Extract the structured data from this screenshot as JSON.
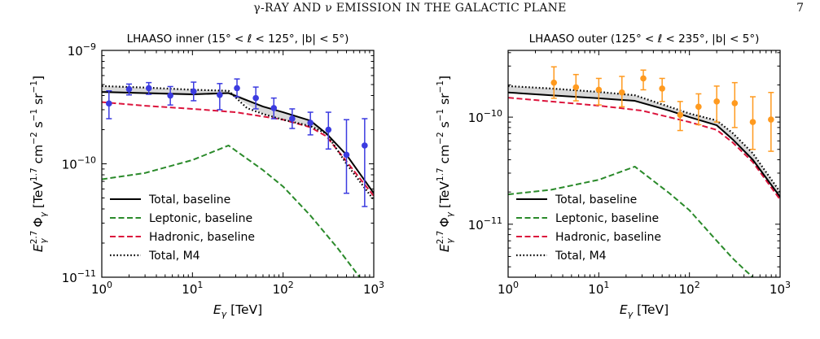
{
  "header": {
    "running_head": "γ-RAY AND ν EMISSION IN THE GALACTIC PLANE",
    "page_number": "7"
  },
  "chart_data": [
    {
      "type": "line",
      "title": "LHAASO inner (15° < ℓ < 125°, |b| < 5°)",
      "xlabel": "E_γ [TeV]",
      "ylabel": "E_γ^2.7 Φ_γ [TeV^1.7 cm^-2 s^-1 sr^-1]",
      "xscale": "log",
      "yscale": "log",
      "xlim": [
        1,
        1000
      ],
      "ylim": [
        1e-11,
        1e-09
      ],
      "x_ticks": [
        {
          "value": 1,
          "base": "10",
          "exp": "0"
        },
        {
          "value": 10,
          "base": "10",
          "exp": "1"
        },
        {
          "value": 100,
          "base": "10",
          "exp": "2"
        },
        {
          "value": 1000,
          "base": "10",
          "exp": "3"
        }
      ],
      "y_ticks": [
        {
          "value": 1e-11,
          "base": "10",
          "exp": "−11"
        },
        {
          "value": 1e-10,
          "base": "10",
          "exp": "−10"
        },
        {
          "value": 1e-09,
          "base": "10",
          "exp": "−9"
        }
      ],
      "legend_position": "lower-left",
      "band": {
        "color": "#d9d9d9",
        "x": [
          1,
          10,
          25,
          60,
          100,
          200,
          300,
          1000
        ],
        "lower": [
          4.2e-10,
          4e-10,
          4.2e-10,
          2.75e-10,
          2.45e-10,
          2.15e-10,
          1.85e-10,
          5.5e-11
        ],
        "upper": [
          4.85e-10,
          4.5e-10,
          4.4e-10,
          3.2e-10,
          2.85e-10,
          2.4e-10,
          1.85e-10,
          5.5e-11
        ]
      },
      "series": [
        {
          "name": "Total, baseline",
          "style": "solid",
          "color": "#000000",
          "x": [
            1,
            3,
            10,
            25,
            60,
            100,
            200,
            300,
            500,
            1000
          ],
          "y": [
            4.3e-10,
            4.2e-10,
            4.1e-10,
            4.2e-10,
            3.2e-10,
            2.85e-10,
            2.4e-10,
            1.85e-10,
            1.2e-10,
            5.5e-11
          ]
        },
        {
          "name": "Leptonic, baseline",
          "style": "dashed",
          "color": "#2a8a2a",
          "x": [
            1,
            3,
            10,
            25,
            60,
            100,
            200,
            400,
            700
          ],
          "y": [
            7.3e-11,
            8.3e-11,
            1.08e-10,
            1.45e-10,
            8.8e-11,
            6.3e-11,
            3.5e-11,
            1.8e-11,
            1e-11
          ]
        },
        {
          "name": "Hadronic, baseline",
          "style": "dashed",
          "color": "#dc143c",
          "x": [
            1,
            3,
            10,
            30,
            100,
            200,
            300,
            500,
            1000
          ],
          "y": [
            3.5e-10,
            3.25e-10,
            3.05e-10,
            2.85e-10,
            2.45e-10,
            2.1e-10,
            1.75e-10,
            1.05e-10,
            5.2e-11
          ]
        },
        {
          "name": "Total, M4",
          "style": "dotted",
          "color": "#000000",
          "x": [
            1,
            3,
            10,
            25,
            40,
            60,
            100,
            200,
            300,
            500,
            1000
          ],
          "y": [
            4.85e-10,
            4.7e-10,
            4.5e-10,
            4.4e-10,
            3.1e-10,
            2.75e-10,
            2.45e-10,
            2.15e-10,
            1.85e-10,
            1e-10,
            4.8e-11
          ]
        }
      ],
      "data_points": {
        "color": "#3b3be0",
        "points": [
          {
            "x": 1.2,
            "y": 3.4e-10,
            "ylo": 2.5e-10,
            "yhi": 4.4e-10
          },
          {
            "x": 2.0,
            "y": 4.55e-10,
            "ylo": 4.05e-10,
            "yhi": 5.05e-10
          },
          {
            "x": 3.3,
            "y": 4.65e-10,
            "ylo": 4.1e-10,
            "yhi": 5.2e-10
          },
          {
            "x": 5.7,
            "y": 4e-10,
            "ylo": 3.3e-10,
            "yhi": 4.8e-10
          },
          {
            "x": 10.3,
            "y": 4.35e-10,
            "ylo": 3.6e-10,
            "yhi": 5.25e-10
          },
          {
            "x": 20,
            "y": 4.05e-10,
            "ylo": 3e-10,
            "yhi": 5.1e-10
          },
          {
            "x": 31,
            "y": 4.65e-10,
            "ylo": 3.9e-10,
            "yhi": 5.6e-10
          },
          {
            "x": 50,
            "y": 3.8e-10,
            "ylo": 3.05e-10,
            "yhi": 4.75e-10
          },
          {
            "x": 79,
            "y": 3.1e-10,
            "ylo": 2.5e-10,
            "yhi": 3.8e-10
          },
          {
            "x": 126,
            "y": 2.5e-10,
            "ylo": 2.05e-10,
            "yhi": 3.05e-10
          },
          {
            "x": 200,
            "y": 2.3e-10,
            "ylo": 1.8e-10,
            "yhi": 2.85e-10
          },
          {
            "x": 316,
            "y": 2e-10,
            "ylo": 1.35e-10,
            "yhi": 2.85e-10
          },
          {
            "x": 500,
            "y": 1.2e-10,
            "ylo": 5.5e-11,
            "yhi": 2.45e-10
          },
          {
            "x": 794,
            "y": 1.45e-10,
            "ylo": 4.2e-11,
            "yhi": 2.5e-10
          }
        ]
      }
    },
    {
      "type": "line",
      "title": "LHAASO outer (125° < ℓ < 235°, |b| < 5°)",
      "xlabel": "E_γ [TeV]",
      "ylabel": "E_γ^2.7 Φ_γ [TeV^1.7 cm^-2 s^-1 sr^-1]",
      "xscale": "log",
      "yscale": "log",
      "xlim": [
        1,
        1000
      ],
      "ylim": [
        3.2e-12,
        4.2e-10
      ],
      "x_ticks": [
        {
          "value": 1,
          "base": "10",
          "exp": "0"
        },
        {
          "value": 10,
          "base": "10",
          "exp": "1"
        },
        {
          "value": 100,
          "base": "10",
          "exp": "2"
        },
        {
          "value": 1000,
          "base": "10",
          "exp": "3"
        }
      ],
      "y_ticks": [
        {
          "value": 1e-11,
          "base": "10",
          "exp": "−11"
        },
        {
          "value": 1e-10,
          "base": "10",
          "exp": "−10"
        }
      ],
      "legend_position": "lower-left",
      "band": {
        "color": "#d9d9d9",
        "x": [
          1,
          3,
          10,
          25,
          60,
          100,
          200,
          300,
          500,
          1000
        ],
        "lower": [
          1.7e-10,
          1.6e-10,
          1.5e-10,
          1.42e-10,
          1.15e-10,
          1e-10,
          8.4e-11,
          6.2e-11,
          4e-11,
          1.8e-11
        ],
        "upper": [
          1.95e-10,
          1.85e-10,
          1.72e-10,
          1.6e-10,
          1.25e-10,
          1.08e-10,
          9.3e-11,
          7.1e-11,
          4.6e-11,
          2e-11
        ]
      },
      "series": [
        {
          "name": "Total, baseline",
          "style": "solid",
          "color": "#000000",
          "x": [
            1,
            3,
            10,
            25,
            60,
            100,
            200,
            300,
            500,
            1000
          ],
          "y": [
            1.7e-10,
            1.6e-10,
            1.5e-10,
            1.42e-10,
            1.15e-10,
            1e-10,
            8.4e-11,
            6.2e-11,
            4e-11,
            1.8e-11
          ]
        },
        {
          "name": "Leptonic, baseline",
          "style": "dashed",
          "color": "#2a8a2a",
          "x": [
            1,
            3,
            10,
            25,
            60,
            100,
            200,
            300,
            400,
            500
          ],
          "y": [
            1.9e-11,
            2.1e-11,
            2.6e-11,
            3.45e-11,
            1.95e-11,
            1.35e-11,
            7e-12,
            4.8e-12,
            3.8e-12,
            3.2e-12
          ]
        },
        {
          "name": "Hadronic, baseline",
          "style": "dashed",
          "color": "#dc143c",
          "x": [
            1,
            3,
            10,
            30,
            100,
            200,
            300,
            500,
            1000
          ],
          "y": [
            1.52e-10,
            1.4e-10,
            1.28e-10,
            1.15e-10,
            9e-11,
            7.6e-11,
            5.8e-11,
            3.8e-11,
            1.7e-11
          ]
        },
        {
          "name": "Total, M4",
          "style": "dotted",
          "color": "#000000",
          "x": [
            1,
            3,
            10,
            25,
            60,
            100,
            200,
            300,
            500,
            1000
          ],
          "y": [
            1.95e-10,
            1.85e-10,
            1.72e-10,
            1.6e-10,
            1.25e-10,
            1.08e-10,
            9.3e-11,
            7.1e-11,
            4.6e-11,
            2e-11
          ]
        }
      ],
      "data_points": {
        "color": "#ff9a1f",
        "points": [
          {
            "x": 3.2,
            "y": 2.1e-10,
            "ylo": 1.5e-10,
            "yhi": 2.95e-10
          },
          {
            "x": 5.6,
            "y": 1.9e-10,
            "ylo": 1.42e-10,
            "yhi": 2.5e-10
          },
          {
            "x": 10,
            "y": 1.8e-10,
            "ylo": 1.3e-10,
            "yhi": 2.3e-10
          },
          {
            "x": 18,
            "y": 1.7e-10,
            "ylo": 1.25e-10,
            "yhi": 2.4e-10
          },
          {
            "x": 31,
            "y": 2.3e-10,
            "ylo": 1.8e-10,
            "yhi": 2.75e-10
          },
          {
            "x": 50,
            "y": 1.85e-10,
            "ylo": 1.4e-10,
            "yhi": 2.3e-10
          },
          {
            "x": 79,
            "y": 1.05e-10,
            "ylo": 7.5e-11,
            "yhi": 1.4e-10
          },
          {
            "x": 126,
            "y": 1.25e-10,
            "ylo": 8.5e-11,
            "yhi": 1.65e-10
          },
          {
            "x": 200,
            "y": 1.4e-10,
            "ylo": 9e-11,
            "yhi": 1.95e-10
          },
          {
            "x": 316,
            "y": 1.35e-10,
            "ylo": 8e-11,
            "yhi": 2.1e-10
          },
          {
            "x": 500,
            "y": 9e-11,
            "ylo": 5e-11,
            "yhi": 1.55e-10
          },
          {
            "x": 794,
            "y": 9.5e-11,
            "ylo": 4.8e-11,
            "yhi": 1.7e-10
          }
        ]
      }
    }
  ]
}
